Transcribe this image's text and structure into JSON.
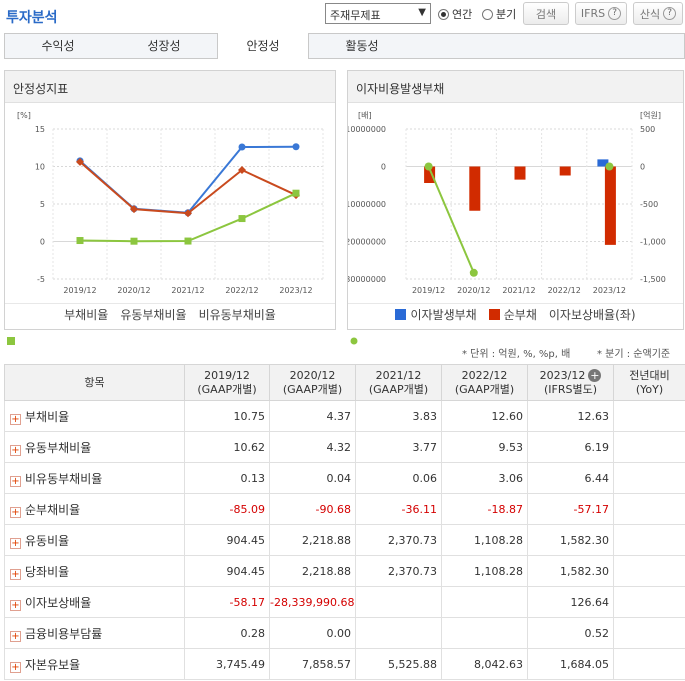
{
  "header": {
    "title": "투자분석",
    "select_value": "주재무제표",
    "radio_annual": "연간",
    "radio_quarter": "분기",
    "search_label": "검색",
    "ifrs_label": "IFRS",
    "calc_label": "산식",
    "help_mark": "?"
  },
  "tabs": [
    {
      "label": "수익성"
    },
    {
      "label": "성장성"
    },
    {
      "label": "안정성"
    },
    {
      "label": "활동성"
    }
  ],
  "chart1": {
    "title": "안정성지표",
    "unit": "[%]",
    "legend": [
      "부채비율",
      "유동부채비율",
      "비유동부채비율"
    ]
  },
  "chart2": {
    "title": "이자비용발생부채",
    "left_unit": "[배]",
    "right_unit": "[억원]",
    "legend": [
      "이자발생부채",
      "순부채",
      "이자보상배율(좌)"
    ]
  },
  "chart_data": [
    {
      "type": "line",
      "title": "안정성지표",
      "ylabel": "[%]",
      "categories": [
        "2019/12",
        "2020/12",
        "2021/12",
        "2022/12",
        "2023/12"
      ],
      "ylim": [
        -5,
        15
      ],
      "yticks": [
        "15",
        "10",
        "5",
        "0",
        "-5"
      ],
      "series": [
        {
          "name": "부채비율",
          "values": [
            10.75,
            4.37,
            3.83,
            12.6,
            12.63
          ],
          "color": "#3a78d6"
        },
        {
          "name": "유동부채비율",
          "values": [
            10.62,
            4.32,
            3.77,
            9.53,
            6.19
          ],
          "color": "#c94a1e"
        },
        {
          "name": "비유동부채비율",
          "values": [
            0.13,
            0.04,
            0.06,
            3.06,
            6.44
          ],
          "color": "#8cc63f"
        }
      ]
    },
    {
      "type": "bar",
      "title": "이자비용발생부채",
      "categories": [
        "2019/12",
        "2020/12",
        "2021/12",
        "2022/12",
        "2023/12"
      ],
      "left_ylim": [
        -30000000,
        10000000
      ],
      "left_yticks": [
        "10000000",
        "0",
        "10000000",
        "20000000",
        "30000000"
      ],
      "right_ylim": [
        -1500,
        500
      ],
      "right_yticks": [
        "500",
        "0",
        "-500",
        "-1,000",
        "-1,500"
      ],
      "series": [
        {
          "name": "이자발생부채",
          "axis": "right",
          "values": [
            0,
            0,
            0,
            0,
            95
          ],
          "color": "#2a6ad6"
        },
        {
          "name": "순부채",
          "axis": "right",
          "values": [
            -220,
            -590,
            -175,
            -120,
            -1045
          ],
          "color": "#d12b00"
        },
        {
          "name": "이자보상배율(좌)",
          "axis": "left",
          "values": [
            -58.17,
            -28339990.68,
            null,
            null,
            126.64
          ],
          "color": "#8cc63f"
        }
      ]
    }
  ],
  "notes": {
    "unit": "* 단위 : 억원, %, %p, 배",
    "quarter": "* 분기 : 순액기준"
  },
  "table": {
    "headers": [
      {
        "l1": "항목",
        "l2": ""
      },
      {
        "l1": "2019/12",
        "l2": "(GAAP개별)"
      },
      {
        "l1": "2020/12",
        "l2": "(GAAP개별)"
      },
      {
        "l1": "2021/12",
        "l2": "(GAAP개별)"
      },
      {
        "l1": "2022/12",
        "l2": "(GAAP개별)"
      },
      {
        "l1": "2023/12",
        "l2": "(IFRS별도)"
      },
      {
        "l1": "전년대비",
        "l2": "(YoY)"
      }
    ],
    "rows": [
      {
        "name": "부채비율",
        "values": [
          "10.75",
          "4.37",
          "3.83",
          "12.60",
          "12.63",
          ""
        ]
      },
      {
        "name": "유동부채비율",
        "values": [
          "10.62",
          "4.32",
          "3.77",
          "9.53",
          "6.19",
          ""
        ]
      },
      {
        "name": "비유동부채비율",
        "values": [
          "0.13",
          "0.04",
          "0.06",
          "3.06",
          "6.44",
          ""
        ]
      },
      {
        "name": "순부채비율",
        "values": [
          "-85.09",
          "-90.68",
          "-36.11",
          "-18.87",
          "-57.17",
          ""
        ]
      },
      {
        "name": "유동비율",
        "values": [
          "904.45",
          "2,218.88",
          "2,370.73",
          "1,108.28",
          "1,582.30",
          ""
        ]
      },
      {
        "name": "당좌비율",
        "values": [
          "904.45",
          "2,218.88",
          "2,370.73",
          "1,108.28",
          "1,582.30",
          ""
        ]
      },
      {
        "name": "이자보상배율",
        "values": [
          "-58.17",
          "-28,339,990.68",
          "",
          "",
          "126.64",
          ""
        ]
      },
      {
        "name": "금융비용부담률",
        "values": [
          "0.28",
          "0.00",
          "",
          "",
          "0.52",
          ""
        ]
      },
      {
        "name": "자본유보율",
        "values": [
          "3,745.49",
          "7,858.57",
          "5,525.88",
          "8,042.63",
          "1,684.05",
          ""
        ]
      }
    ]
  }
}
